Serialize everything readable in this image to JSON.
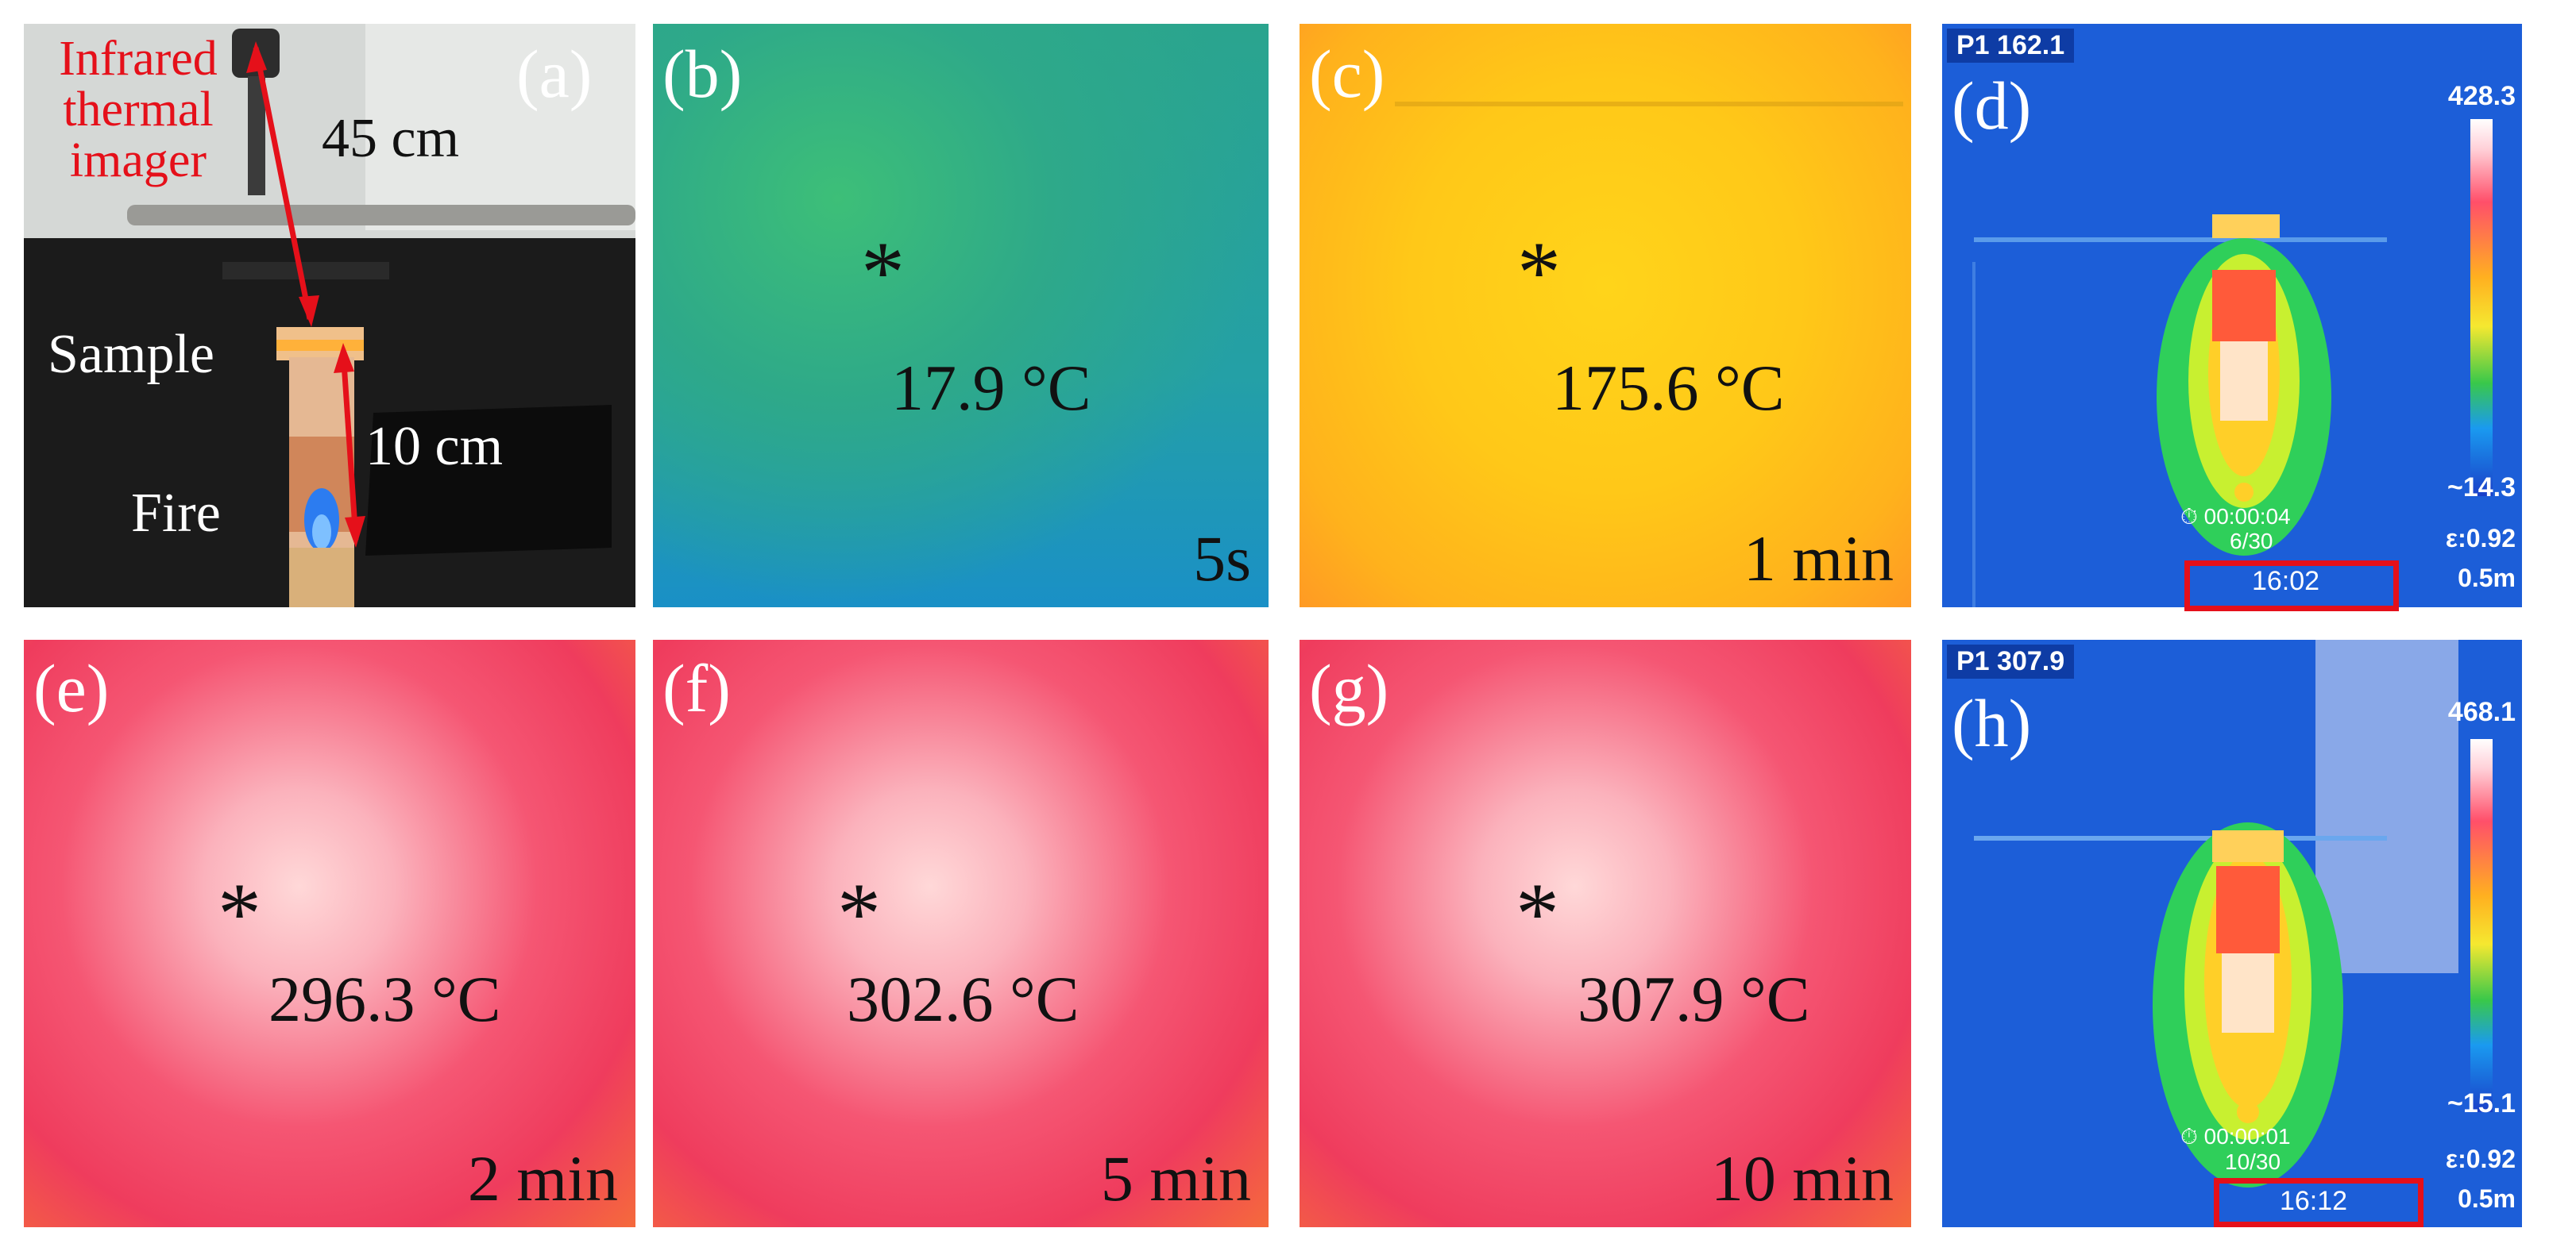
{
  "panels": {
    "a": {
      "label": "(a)",
      "annotations": {
        "imager": [
          "Infrared",
          "thermal",
          "imager"
        ],
        "distance_top": "45 cm",
        "sample": "Sample",
        "distance_bottom": "10 cm",
        "fire": "Fire"
      },
      "colors": {
        "annotation": "#e5101a"
      }
    },
    "b": {
      "label": "(b)",
      "temperature": "17.9 °C",
      "time": "5s"
    },
    "c": {
      "label": "(c)",
      "temperature": "175.6 °C",
      "time": "1 min"
    },
    "d": {
      "label": "(d)",
      "readout": "P1  162.1",
      "scale_max": "428.3",
      "scale_min": "~14.3",
      "timer": "⏱ 00:00:04",
      "frame": "6/30",
      "emissivity": "ε:0.92",
      "distance": "0.5m",
      "clock": "16:02"
    },
    "e": {
      "label": "(e)",
      "temperature": "296.3 °C",
      "time": "2 min"
    },
    "f": {
      "label": "(f)",
      "temperature": "302.6 °C",
      "time": "5 min"
    },
    "g": {
      "label": "(g)",
      "temperature": "307.9 °C",
      "time": "10 min"
    },
    "h": {
      "label": "(h)",
      "readout": "P1  307.9",
      "scale_max": "468.1",
      "scale_min": "~15.1",
      "timer": "⏱ 00:00:01",
      "frame": "10/30",
      "emissivity": "ε:0.92",
      "distance": "0.5m",
      "clock": "16:12"
    }
  },
  "marker": "*",
  "colors": {
    "highlight_box": "#e5101a"
  }
}
